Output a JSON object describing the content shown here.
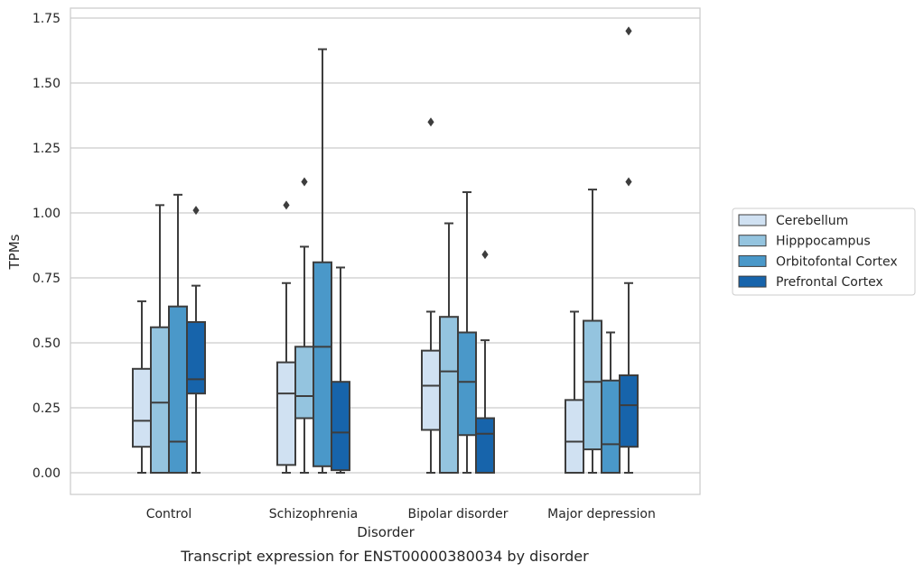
{
  "chart_data": {
    "type": "box",
    "title": "",
    "caption": "Transcript expression for ENST00000380034 by disorder",
    "xlabel": "Disorder",
    "ylabel": "TPMs",
    "ylim": [
      -0.08,
      1.78
    ],
    "yticks": [
      "0.00",
      "0.25",
      "0.50",
      "0.75",
      "1.00",
      "1.25",
      "1.50",
      "1.75"
    ],
    "grid": "horizontal",
    "legend_position": "right",
    "categories": [
      "Control",
      "Schizophrenia",
      "Bipolar disorder",
      "Major depression"
    ],
    "series": [
      {
        "name": "Cerebellum",
        "color": "#d0e1f2",
        "boxes": [
          {
            "whislo": 0.0,
            "q1": 0.1,
            "med": 0.2,
            "q3": 0.4,
            "whishi": 0.66,
            "fliers": []
          },
          {
            "whislo": 0.0,
            "q1": 0.03,
            "med": 0.305,
            "q3": 0.425,
            "whishi": 0.73,
            "fliers": [
              1.03
            ]
          },
          {
            "whislo": 0.0,
            "q1": 0.165,
            "med": 0.335,
            "q3": 0.47,
            "whishi": 0.62,
            "fliers": [
              1.35
            ]
          },
          {
            "whislo": 0.0,
            "q1": 0.0,
            "med": 0.12,
            "q3": 0.28,
            "whishi": 0.62,
            "fliers": []
          }
        ]
      },
      {
        "name": "Hipppocampus",
        "color": "#94c4df",
        "boxes": [
          {
            "whislo": 0.0,
            "q1": 0.0,
            "med": 0.27,
            "q3": 0.56,
            "whishi": 1.03,
            "fliers": []
          },
          {
            "whislo": 0.0,
            "q1": 0.21,
            "med": 0.295,
            "q3": 0.485,
            "whishi": 0.87,
            "fliers": [
              1.12
            ]
          },
          {
            "whislo": 0.0,
            "q1": 0.0,
            "med": 0.39,
            "q3": 0.6,
            "whishi": 0.96,
            "fliers": []
          },
          {
            "whislo": 0.0,
            "q1": 0.09,
            "med": 0.35,
            "q3": 0.585,
            "whishi": 1.09,
            "fliers": []
          }
        ]
      },
      {
        "name": "Orbitofontal Cortex",
        "color": "#4a98c9",
        "boxes": [
          {
            "whislo": 0.0,
            "q1": 0.0,
            "med": 0.12,
            "q3": 0.64,
            "whishi": 1.07,
            "fliers": []
          },
          {
            "whislo": 0.0,
            "q1": 0.025,
            "med": 0.485,
            "q3": 0.81,
            "whishi": 1.63,
            "fliers": []
          },
          {
            "whislo": 0.0,
            "q1": 0.145,
            "med": 0.35,
            "q3": 0.54,
            "whishi": 1.08,
            "fliers": []
          },
          {
            "whislo": 0.0,
            "q1": 0.0,
            "med": 0.11,
            "q3": 0.355,
            "whishi": 0.54,
            "fliers": []
          }
        ]
      },
      {
        "name": "Prefrontal Cortex",
        "color": "#1764ab",
        "boxes": [
          {
            "whislo": 0.0,
            "q1": 0.305,
            "med": 0.36,
            "q3": 0.58,
            "whishi": 0.72,
            "fliers": [
              1.01
            ]
          },
          {
            "whislo": 0.0,
            "q1": 0.01,
            "med": 0.155,
            "q3": 0.35,
            "whishi": 0.79,
            "fliers": []
          },
          {
            "whislo": 0.0,
            "q1": 0.0,
            "med": 0.15,
            "q3": 0.21,
            "whishi": 0.51,
            "fliers": [
              0.84
            ]
          },
          {
            "whislo": 0.0,
            "q1": 0.1,
            "med": 0.26,
            "q3": 0.375,
            "whishi": 0.73,
            "fliers": [
              1.12,
              1.7
            ]
          }
        ]
      }
    ]
  }
}
